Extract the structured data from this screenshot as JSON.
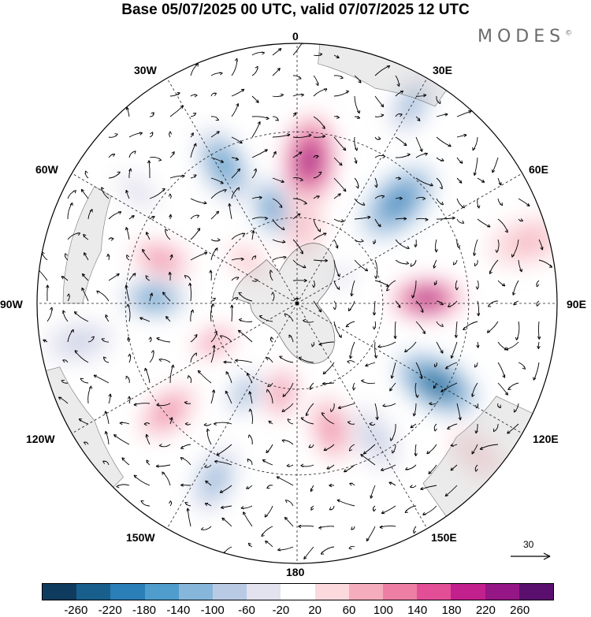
{
  "title": "Base 05/07/2025 00 UTC, valid 07/07/2025 12 UTC",
  "brand": "MODES",
  "brand_mark": "©",
  "labels": {
    "top": "0",
    "bottom": "180",
    "left": "90W",
    "right": "90E",
    "ul30": "30W",
    "ur30": "30E",
    "ul60": "60W",
    "ur60": "60E",
    "ll120": "120W",
    "lr120": "120E",
    "ll150": "150W",
    "lr150": "150E"
  },
  "vector_scale_label": "30",
  "colorbar": {
    "colors": [
      "#0f3b5e",
      "#185f8c",
      "#2b7fb8",
      "#4f9dcc",
      "#86b7db",
      "#b9cbe4",
      "#e3e2ef",
      "#ffffff",
      "#fbd9dd",
      "#f5adbd",
      "#ee7fa4",
      "#e24f97",
      "#c2208d",
      "#951685",
      "#5a0f6e"
    ],
    "ticks": [
      "-260",
      "-220",
      "-180",
      "-140",
      "-100",
      "-60",
      "-20",
      "20",
      "60",
      "100",
      "140",
      "180",
      "220",
      "260"
    ]
  },
  "anomalies": [
    {
      "lon": 5,
      "rho": 0.55,
      "value": 230,
      "size": 0.13
    },
    {
      "lon": 5,
      "rho": 0.3,
      "value": 80,
      "size": 0.1
    },
    {
      "lon": -28,
      "rho": 0.6,
      "value": -160,
      "size": 0.12
    },
    {
      "lon": -15,
      "rho": 0.38,
      "value": -180,
      "size": 0.08
    },
    {
      "lon": 45,
      "rho": 0.55,
      "value": -190,
      "size": 0.13
    },
    {
      "lon": 30,
      "rho": 0.88,
      "value": -120,
      "size": 0.09
    },
    {
      "lon": 75,
      "rho": 0.92,
      "value": 80,
      "size": 0.12
    },
    {
      "lon": 88,
      "rho": 0.5,
      "value": 250,
      "size": 0.1
    },
    {
      "lon": 120,
      "rho": 0.62,
      "value": -230,
      "size": 0.13
    },
    {
      "lon": 150,
      "rho": 0.6,
      "value": -80,
      "size": 0.1
    },
    {
      "lon": 165,
      "rho": 0.5,
      "value": 110,
      "size": 0.1
    },
    {
      "lon": -170,
      "rho": 0.35,
      "value": 130,
      "size": 0.08
    },
    {
      "lon": -150,
      "rho": 0.4,
      "value": -140,
      "size": 0.07
    },
    {
      "lon": -155,
      "rho": 0.75,
      "value": -120,
      "size": 0.1
    },
    {
      "lon": -130,
      "rho": 0.65,
      "value": 120,
      "size": 0.1
    },
    {
      "lon": -115,
      "rho": 0.35,
      "value": 130,
      "size": 0.07
    },
    {
      "lon": -88,
      "rho": 0.55,
      "value": -170,
      "size": 0.1
    },
    {
      "lon": -72,
      "rho": 0.55,
      "value": 140,
      "size": 0.09
    },
    {
      "lon": -55,
      "rho": 0.75,
      "value": -50,
      "size": 0.1
    },
    {
      "lon": -50,
      "rho": 0.25,
      "value": 70,
      "size": 0.07
    },
    {
      "lon": 60,
      "rho": 0.2,
      "value": -40,
      "size": 0.07
    },
    {
      "lon": -100,
      "rho": 0.85,
      "value": -70,
      "size": 0.1
    },
    {
      "lon": 130,
      "rho": 0.9,
      "value": 60,
      "size": 0.09
    }
  ]
}
